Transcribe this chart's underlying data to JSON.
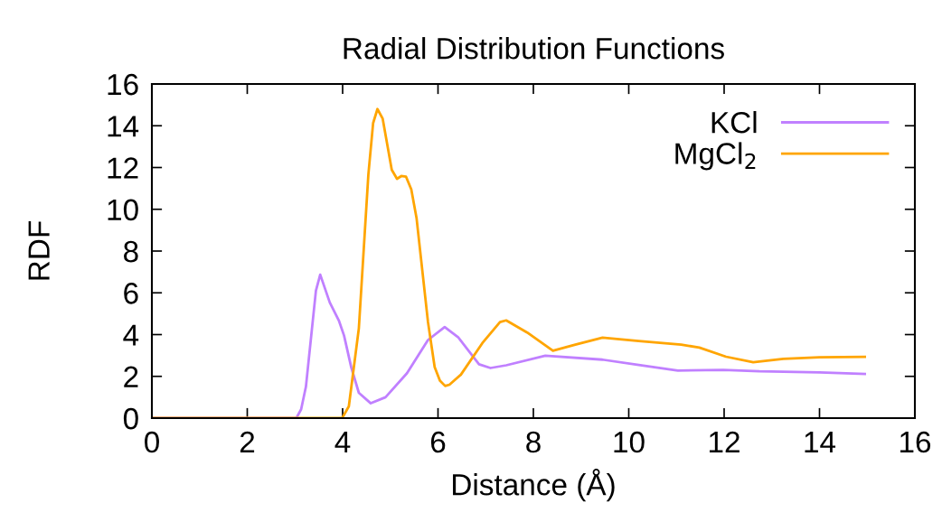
{
  "chart_data": {
    "type": "line",
    "title": "Radial Distribution Functions",
    "xlabel": "Distance (Å)",
    "ylabel": "RDF",
    "xlim": [
      0,
      16
    ],
    "ylim": [
      0,
      16
    ],
    "xticks": [
      0,
      2,
      4,
      6,
      8,
      10,
      12,
      14,
      16
    ],
    "yticks": [
      0,
      2,
      4,
      6,
      8,
      10,
      12,
      14,
      16
    ],
    "grid": false,
    "legend": "top right",
    "marker": "none",
    "line_style": "solid",
    "series": [
      {
        "name": "KCl",
        "color": "#c080ff",
        "x": [
          0,
          3.03,
          3.13,
          3.23,
          3.44,
          3.53,
          3.73,
          3.92,
          4.03,
          4.18,
          4.34,
          4.59,
          4.9,
          5.35,
          5.79,
          6.14,
          6.42,
          6.86,
          7.1,
          7.43,
          8.25,
          9.45,
          10.21,
          11.03,
          11.98,
          12.74,
          14.0,
          14.95
        ],
        "values": [
          0,
          0,
          0.42,
          1.5,
          6.1,
          6.87,
          5.54,
          4.68,
          3.95,
          2.44,
          1.21,
          0.71,
          1.0,
          2.15,
          3.74,
          4.36,
          3.88,
          2.58,
          2.4,
          2.53,
          2.99,
          2.8,
          2.55,
          2.28,
          2.31,
          2.24,
          2.19,
          2.12
        ]
      },
      {
        "name": "MgCl$_{2}$",
        "color": "#ffa500",
        "x": [
          0,
          3.99,
          4.13,
          4.34,
          4.54,
          4.64,
          4.73,
          4.84,
          5.03,
          5.14,
          5.23,
          5.33,
          5.44,
          5.55,
          5.79,
          5.93,
          6.04,
          6.15,
          6.24,
          6.48,
          6.93,
          7.3,
          7.43,
          7.87,
          8.41,
          8.88,
          9.45,
          10.21,
          11.1,
          11.48,
          12.04,
          12.61,
          13.24,
          14.0,
          14.95
        ],
        "values": [
          0,
          0,
          0.56,
          4.3,
          11.67,
          14.13,
          14.8,
          14.34,
          11.89,
          11.46,
          11.59,
          11.56,
          10.95,
          9.58,
          4.6,
          2.44,
          1.79,
          1.54,
          1.6,
          2.08,
          3.59,
          4.6,
          4.68,
          4.1,
          3.23,
          3.52,
          3.85,
          3.69,
          3.52,
          3.38,
          2.94,
          2.68,
          2.84,
          2.91,
          2.93
        ]
      }
    ]
  }
}
